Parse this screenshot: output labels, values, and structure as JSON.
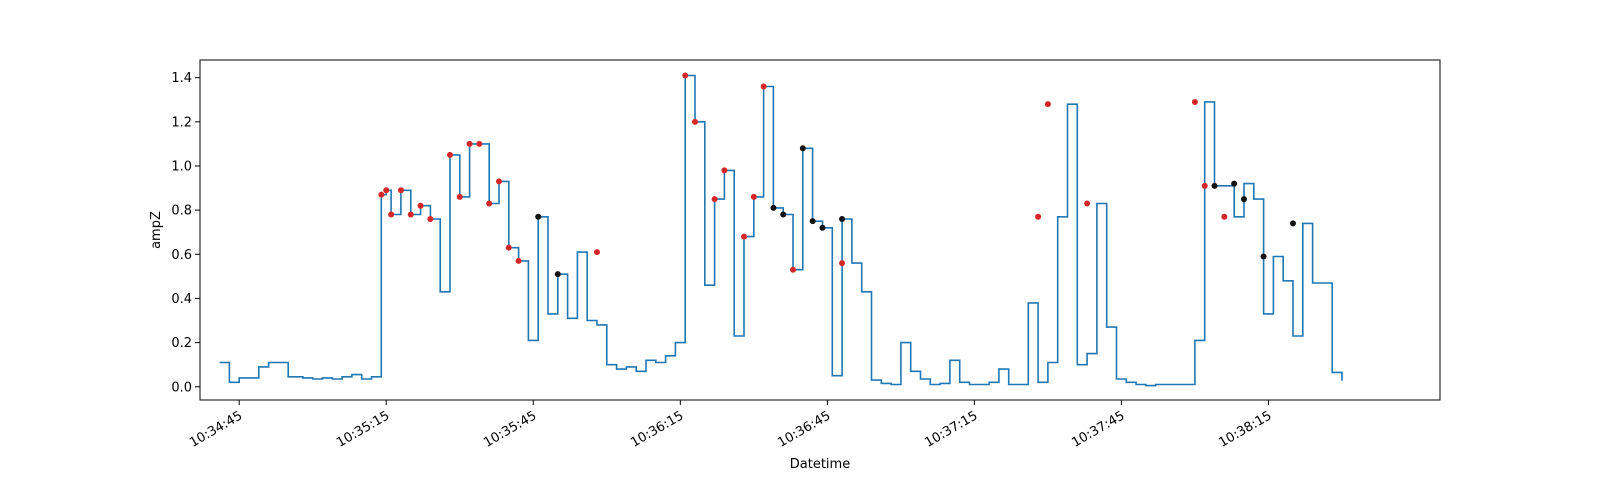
{
  "chart_data": {
    "type": "line",
    "title": "",
    "xlabel": "Datetime",
    "ylabel": "ampZ",
    "x_axis_kind": "time",
    "xlim": [
      "10:34:37",
      "10:38:50"
    ],
    "ylim": [
      -0.06,
      1.48
    ],
    "x_ticks": [
      "10:34:45",
      "10:35:15",
      "10:35:45",
      "10:36:15",
      "10:36:45",
      "10:37:15",
      "10:37:45",
      "10:38:15"
    ],
    "y_ticks": [
      "0.0",
      "0.2",
      "0.4",
      "0.6",
      "0.8",
      "1.0",
      "1.2",
      "1.4"
    ],
    "grid": false,
    "line_style": "step-post",
    "colors": {
      "line": "#1f77b4",
      "marker_red": "#d62728",
      "marker_black": "#111111"
    },
    "series": [
      {
        "x": [
          "10:34:41",
          "10:34:43",
          "10:34:45",
          "10:34:49",
          "10:34:51",
          "10:34:55",
          "10:34:58",
          "10:35:00",
          "10:35:02",
          "10:35:04",
          "10:35:06",
          "10:35:08",
          "10:35:10",
          "10:35:12",
          "10:35:14",
          "10:35:15",
          "10:35:16",
          "10:35:18",
          "10:35:20",
          "10:35:22",
          "10:35:24",
          "10:35:26",
          "10:35:28",
          "10:35:30",
          "10:35:32",
          "10:35:34",
          "10:35:36",
          "10:35:38",
          "10:35:40",
          "10:35:42",
          "10:35:44",
          "10:35:46",
          "10:35:48",
          "10:35:50",
          "10:35:52",
          "10:35:54",
          "10:35:56",
          "10:35:58",
          "10:36:00",
          "10:36:02",
          "10:36:04",
          "10:36:06",
          "10:36:08",
          "10:36:10",
          "10:36:12",
          "10:36:14",
          "10:36:16",
          "10:36:18",
          "10:36:20",
          "10:36:22",
          "10:36:24",
          "10:36:26",
          "10:36:28",
          "10:36:30",
          "10:36:32",
          "10:36:34",
          "10:36:36",
          "10:36:38",
          "10:36:40",
          "10:36:42",
          "10:36:44",
          "10:36:46",
          "10:36:48",
          "10:36:50",
          "10:36:52",
          "10:36:54",
          "10:36:56",
          "10:36:58",
          "10:37:00",
          "10:37:02",
          "10:37:04",
          "10:37:06",
          "10:37:08",
          "10:37:10",
          "10:37:12",
          "10:37:14",
          "10:37:16",
          "10:37:18",
          "10:37:20",
          "10:37:22",
          "10:37:24",
          "10:37:26",
          "10:37:28",
          "10:37:30",
          "10:37:32",
          "10:37:34",
          "10:37:36",
          "10:37:38",
          "10:37:40",
          "10:37:42",
          "10:37:44",
          "10:37:46",
          "10:37:48",
          "10:37:50",
          "10:37:52",
          "10:37:54",
          "10:37:56",
          "10:37:58",
          "10:38:00",
          "10:38:02",
          "10:38:04",
          "10:38:06",
          "10:38:08",
          "10:38:10",
          "10:38:12",
          "10:38:14",
          "10:38:16",
          "10:38:18",
          "10:38:20",
          "10:38:22",
          "10:38:24",
          "10:38:26",
          "10:38:28",
          "10:38:30"
        ],
        "y": [
          0.11,
          0.02,
          0.04,
          0.09,
          0.11,
          0.045,
          0.04,
          0.035,
          0.04,
          0.035,
          0.045,
          0.055,
          0.035,
          0.045,
          0.87,
          0.89,
          0.78,
          0.89,
          0.78,
          0.82,
          0.76,
          0.43,
          1.05,
          0.86,
          1.1,
          1.1,
          0.83,
          0.93,
          0.63,
          0.57,
          0.21,
          0.77,
          0.33,
          0.51,
          0.31,
          0.61,
          0.3,
          0.28,
          0.1,
          0.08,
          0.09,
          0.07,
          0.12,
          0.11,
          0.14,
          0.2,
          1.41,
          1.2,
          0.46,
          0.85,
          0.98,
          0.23,
          0.68,
          0.86,
          1.36,
          0.81,
          0.78,
          0.53,
          1.08,
          0.75,
          0.72,
          0.05,
          0.76,
          0.56,
          0.43,
          0.03,
          0.015,
          0.01,
          0.2,
          0.07,
          0.035,
          0.01,
          0.015,
          0.12,
          0.02,
          0.01,
          0.01,
          0.02,
          0.08,
          0.01,
          0.01,
          0.38,
          0.02,
          0.11,
          0.77,
          1.28,
          0.1,
          0.15,
          0.83,
          0.27,
          0.035,
          0.02,
          0.01,
          0.005,
          0.01,
          0.01,
          0.01,
          0.01,
          0.21,
          1.29,
          0.91,
          0.91,
          0.77,
          0.92,
          0.85,
          0.33,
          0.59,
          0.48,
          0.23,
          0.74,
          0.47,
          0.47,
          0.065,
          0.03
        ]
      }
    ],
    "red_markers": {
      "x": [
        "10:35:14",
        "10:35:15",
        "10:35:16",
        "10:35:18",
        "10:35:20",
        "10:35:22",
        "10:35:24",
        "10:35:28",
        "10:35:30",
        "10:35:32",
        "10:35:34",
        "10:35:36",
        "10:35:38",
        "10:35:40",
        "10:35:42",
        "10:35:58",
        "10:36:16",
        "10:36:18",
        "10:36:22",
        "10:36:24",
        "10:36:28",
        "10:36:30",
        "10:36:32",
        "10:36:38",
        "10:36:48",
        "10:37:28",
        "10:37:30",
        "10:37:38",
        "10:38:00",
        "10:38:02",
        "10:38:06"
      ],
      "y": [
        0.87,
        0.89,
        0.78,
        0.89,
        0.78,
        0.82,
        0.76,
        1.05,
        0.86,
        1.1,
        1.1,
        0.83,
        0.93,
        0.63,
        0.57,
        0.61,
        1.41,
        1.2,
        0.85,
        0.98,
        0.68,
        0.86,
        1.36,
        0.53,
        0.56,
        0.77,
        1.28,
        0.83,
        1.29,
        0.91,
        0.77
      ]
    },
    "black_markers": {
      "x": [
        "10:35:46",
        "10:35:50",
        "10:36:34",
        "10:36:36",
        "10:36:40",
        "10:36:42",
        "10:36:44",
        "10:36:48",
        "10:38:04",
        "10:38:08",
        "10:38:10",
        "10:38:14",
        "10:38:20"
      ],
      "y": [
        0.77,
        0.51,
        0.81,
        0.78,
        1.08,
        0.75,
        0.72,
        0.76,
        0.91,
        0.92,
        0.85,
        0.59,
        0.74
      ]
    }
  }
}
